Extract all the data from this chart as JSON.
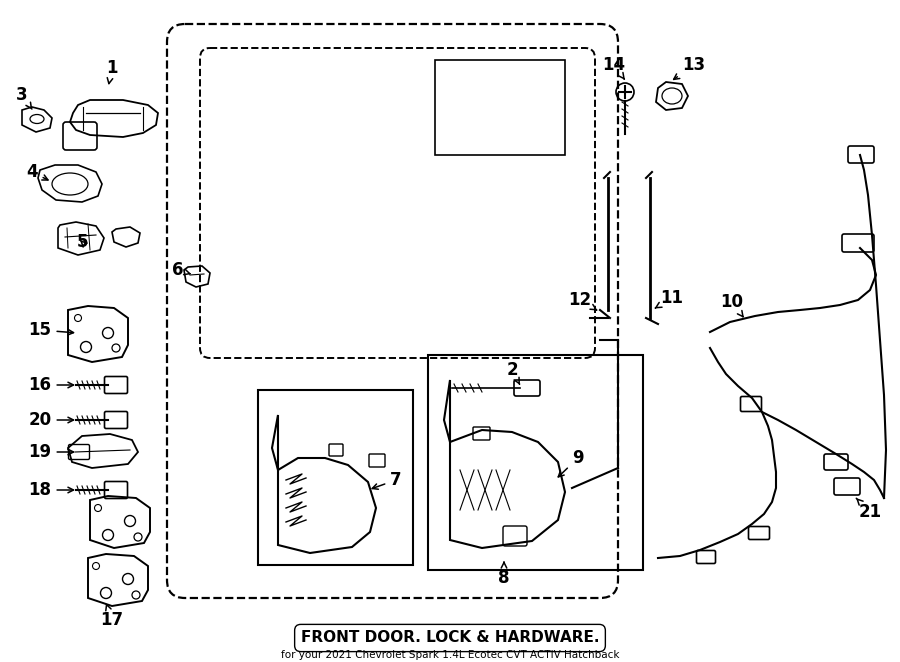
{
  "title": "FRONT DOOR. LOCK & HARDWARE.",
  "subtitle": "for your 2021 Chevrolet Spark 1.4L Ecotec CVT ACTIV Hatchback",
  "bg_color": "#ffffff",
  "line_color": "#000000",
  "figsize": [
    9.0,
    6.62
  ],
  "dpi": 100
}
